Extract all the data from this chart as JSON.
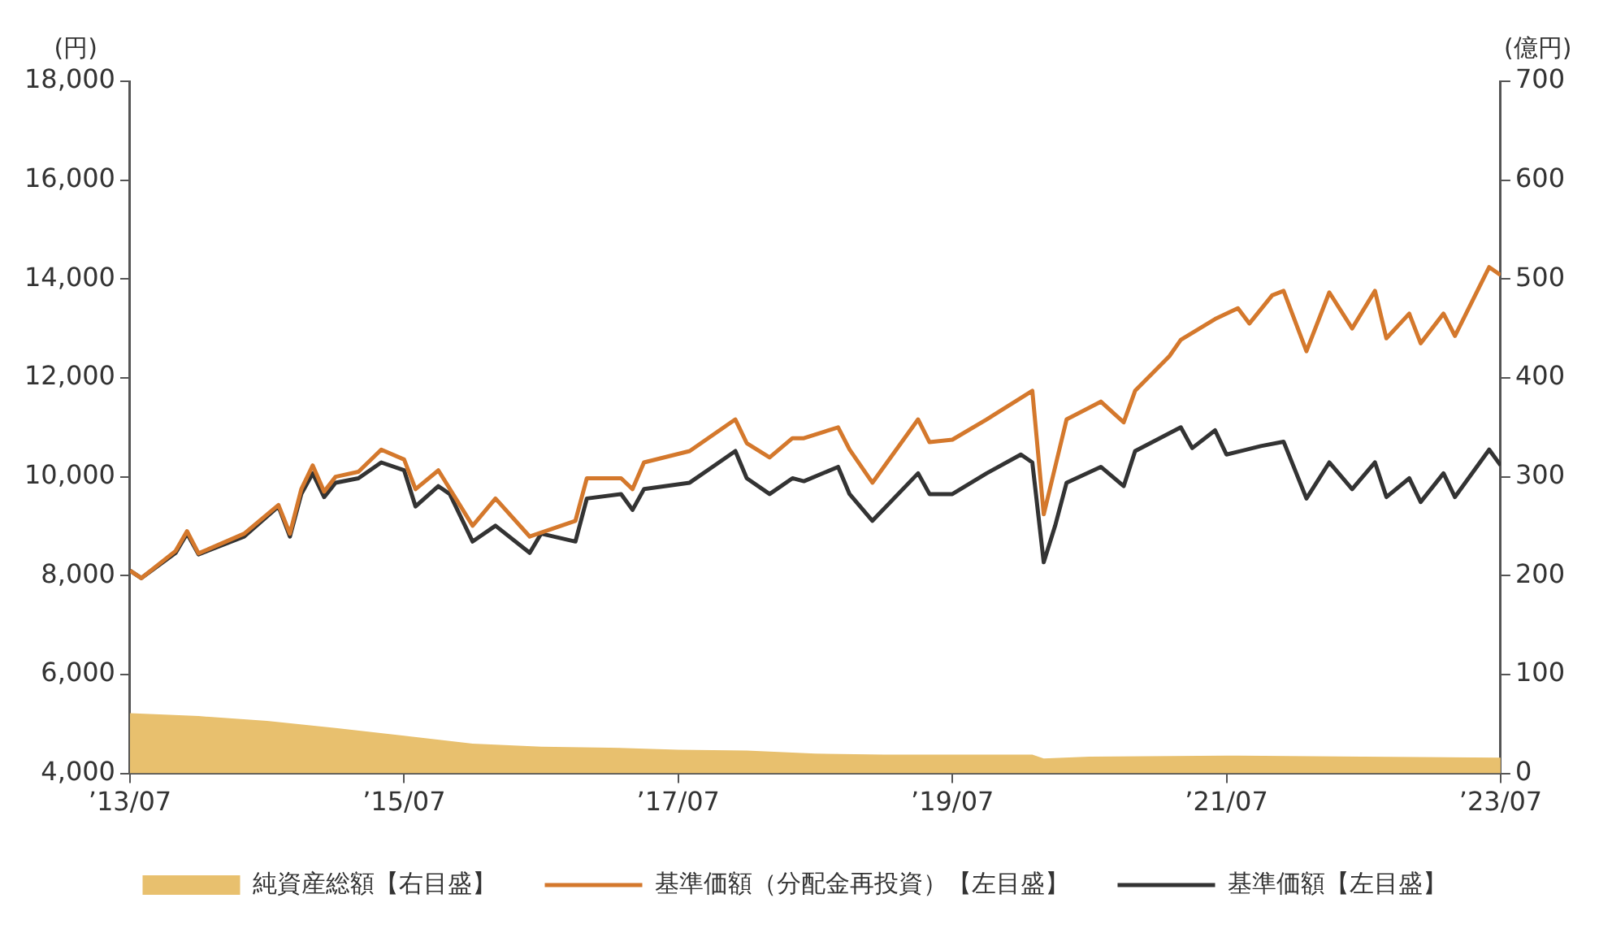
{
  "chart_data": {
    "type": "line",
    "ylabel": "(円)",
    "y2label": "(億円)",
    "xlim": [
      "2013-07",
      "2023-07"
    ],
    "xticks": [
      {
        "value": "2013-07",
        "label": "’13/07"
      },
      {
        "value": "2015-07",
        "label": "’15/07"
      },
      {
        "value": "2017-07",
        "label": "’17/07"
      },
      {
        "value": "2019-07",
        "label": "’19/07"
      },
      {
        "value": "2021-07",
        "label": "’21/07"
      },
      {
        "value": "2023-07",
        "label": "’23/07"
      }
    ],
    "ylim": [
      4000,
      18000
    ],
    "yticks": [
      {
        "value": 4000,
        "label": "4,000"
      },
      {
        "value": 6000,
        "label": "6,000"
      },
      {
        "value": 8000,
        "label": "8,000"
      },
      {
        "value": 10000,
        "label": "10,000"
      },
      {
        "value": 12000,
        "label": "12,000"
      },
      {
        "value": 14000,
        "label": "14,000"
      },
      {
        "value": 16000,
        "label": "16,000"
      },
      {
        "value": 18000,
        "label": "18,000"
      }
    ],
    "y2lim": [
      0,
      700
    ],
    "y2ticks": [
      0,
      100,
      200,
      300,
      400,
      500,
      600,
      700
    ],
    "grid": false,
    "legend": "bottom",
    "marker": "none",
    "line_style": "solid",
    "series": [
      {
        "name": "純資産総額【右目盛】",
        "type": "area",
        "axis": "y2",
        "color": "#e8c06e",
        "x": [
          "2013-07",
          "2014-01",
          "2014-07",
          "2015-01",
          "2015-07",
          "2016-01",
          "2016-07",
          "2017-01",
          "2017-07",
          "2018-01",
          "2018-07",
          "2019-01",
          "2019-07",
          "2020-02",
          "2020-03",
          "2020-07",
          "2021-07",
          "2022-07",
          "2023-07"
        ],
        "values": [
          61,
          58,
          53,
          46,
          38,
          30,
          27,
          26,
          24,
          23,
          20,
          19,
          19,
          19,
          15,
          17,
          18,
          17,
          16
        ]
      },
      {
        "name": "基準価額（分配金再投資）【左目盛】",
        "color": "#d4782c",
        "x": [
          "2013-07",
          "2013-08",
          "2013-11",
          "2013-12",
          "2014-01",
          "2014-05",
          "2014-08",
          "2014-09",
          "2014-10",
          "2014-11",
          "2014-12",
          "2015-01",
          "2015-03",
          "2015-05",
          "2015-07",
          "2015-08",
          "2015-10",
          "2016-01",
          "2016-03",
          "2016-06",
          "2016-10",
          "2016-11",
          "2017-02",
          "2017-03",
          "2017-04",
          "2017-08",
          "2017-12",
          "2018-01",
          "2018-03",
          "2018-05",
          "2018-06",
          "2018-09",
          "2018-10",
          "2018-12",
          "2019-04",
          "2019-05",
          "2019-07",
          "2019-10",
          "2020-02",
          "2020-03",
          "2020-04",
          "2020-05",
          "2020-08",
          "2020-10",
          "2020-11",
          "2021-02",
          "2021-03",
          "2021-06",
          "2021-08",
          "2021-09",
          "2021-11",
          "2021-12",
          "2022-02",
          "2022-04",
          "2022-06",
          "2022-08",
          "2022-09",
          "2022-11",
          "2022-12",
          "2023-02",
          "2023-03",
          "2023-06",
          "2023-07"
        ],
        "values": [
          8100,
          7950,
          8500,
          8900,
          8450,
          8850,
          9430,
          8850,
          9750,
          10230,
          9700,
          10000,
          10100,
          10550,
          10350,
          9750,
          10130,
          9010,
          9560,
          8790,
          9110,
          9970,
          9970,
          9750,
          10290,
          10520,
          11160,
          10680,
          10390,
          10780,
          10780,
          11000,
          10550,
          9880,
          11160,
          10700,
          10750,
          11160,
          11740,
          9240,
          10200,
          11160,
          11520,
          11100,
          11740,
          12440,
          12770,
          13190,
          13410,
          13100,
          13670,
          13760,
          12540,
          13730,
          13000,
          13760,
          12800,
          13300,
          12700,
          13300,
          12850,
          14240,
          14080
        ]
      },
      {
        "name": "基準価額【左目盛】",
        "color": "#333333",
        "x": [
          "2013-07",
          "2013-08",
          "2013-11",
          "2013-12",
          "2014-01",
          "2014-05",
          "2014-08",
          "2014-09",
          "2014-10",
          "2014-11",
          "2014-12",
          "2015-01",
          "2015-03",
          "2015-05",
          "2015-07",
          "2015-08",
          "2015-10",
          "2015-11",
          "2016-01",
          "2016-03",
          "2016-06",
          "2016-07",
          "2016-10",
          "2016-11",
          "2017-02",
          "2017-03",
          "2017-04",
          "2017-08",
          "2017-10",
          "2017-12",
          "2018-01",
          "2018-03",
          "2018-05",
          "2018-06",
          "2018-09",
          "2018-10",
          "2018-12",
          "2019-04",
          "2019-05",
          "2019-07",
          "2019-10",
          "2020-01",
          "2020-02",
          "2020-03",
          "2020-04",
          "2020-05",
          "2020-08",
          "2020-10",
          "2020-11",
          "2021-03",
          "2021-04",
          "2021-06",
          "2021-07",
          "2021-10",
          "2021-12",
          "2022-02",
          "2022-04",
          "2022-06",
          "2022-08",
          "2022-09",
          "2022-11",
          "2022-12",
          "2023-02",
          "2023-03",
          "2023-06",
          "2023-07"
        ],
        "values": [
          8100,
          7950,
          8460,
          8850,
          8430,
          8790,
          9400,
          8790,
          9650,
          10070,
          9590,
          9880,
          9970,
          10290,
          10130,
          9400,
          9810,
          9650,
          8690,
          9010,
          8460,
          8850,
          8690,
          9560,
          9650,
          9330,
          9750,
          9880,
          10200,
          10520,
          9970,
          9650,
          9970,
          9910,
          10200,
          9650,
          9110,
          10070,
          9650,
          9650,
          10070,
          10450,
          10290,
          8270,
          9010,
          9880,
          10200,
          9810,
          10520,
          11000,
          10580,
          10940,
          10450,
          10620,
          10710,
          9560,
          10290,
          9750,
          10290,
          9590,
          9970,
          9490,
          10070,
          9590,
          10550,
          10230
        ]
      }
    ]
  }
}
